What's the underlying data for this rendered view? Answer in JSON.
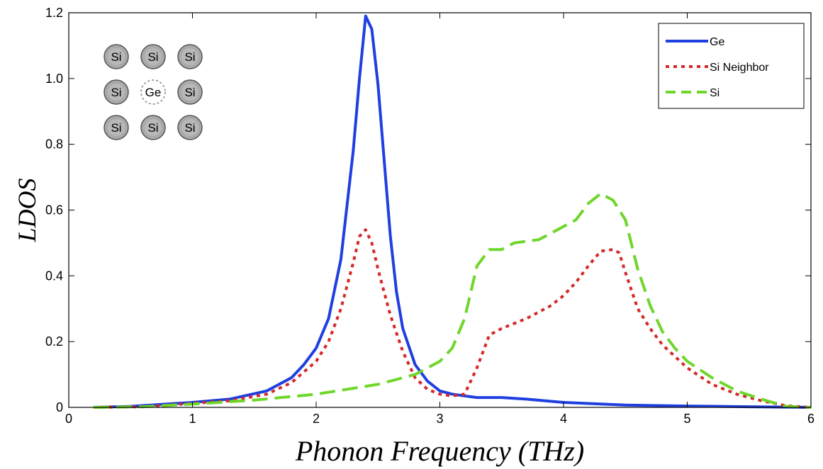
{
  "chart_data": {
    "type": "line",
    "title": "",
    "xlabel": "Phonon Frequency (THz)",
    "ylabel": "LDOS",
    "xlim": [
      0,
      6
    ],
    "ylim": [
      0,
      1.2
    ],
    "xticks": [
      "0",
      "1",
      "2",
      "3",
      "4",
      "5",
      "6"
    ],
    "yticks": [
      "0",
      "0.2",
      "0.4",
      "0.6",
      "0.8",
      "1.0",
      "1.2"
    ],
    "grid": false,
    "legend_position": "top-right",
    "series": [
      {
        "name": "Ge",
        "color": "#1f3fe0",
        "style": "solid",
        "points": [
          [
            0.2,
            0.0
          ],
          [
            0.5,
            0.003
          ],
          [
            1.0,
            0.015
          ],
          [
            1.3,
            0.025
          ],
          [
            1.6,
            0.05
          ],
          [
            1.8,
            0.09
          ],
          [
            1.9,
            0.13
          ],
          [
            2.0,
            0.18
          ],
          [
            2.1,
            0.27
          ],
          [
            2.2,
            0.45
          ],
          [
            2.3,
            0.78
          ],
          [
            2.35,
            1.0
          ],
          [
            2.4,
            1.19
          ],
          [
            2.45,
            1.15
          ],
          [
            2.5,
            0.98
          ],
          [
            2.55,
            0.75
          ],
          [
            2.6,
            0.52
          ],
          [
            2.65,
            0.35
          ],
          [
            2.7,
            0.24
          ],
          [
            2.8,
            0.13
          ],
          [
            2.9,
            0.08
          ],
          [
            3.0,
            0.05
          ],
          [
            3.1,
            0.04
          ],
          [
            3.2,
            0.035
          ],
          [
            3.3,
            0.03
          ],
          [
            3.5,
            0.03
          ],
          [
            3.7,
            0.025
          ],
          [
            4.0,
            0.015
          ],
          [
            4.5,
            0.007
          ],
          [
            5.0,
            0.004
          ],
          [
            5.5,
            0.002
          ],
          [
            6.0,
            0.0
          ]
        ]
      },
      {
        "name": "Si Neighbor",
        "color": "#d42a2a",
        "style": "dotted",
        "points": [
          [
            0.2,
            0.0
          ],
          [
            0.6,
            0.002
          ],
          [
            1.0,
            0.012
          ],
          [
            1.3,
            0.02
          ],
          [
            1.6,
            0.04
          ],
          [
            1.8,
            0.075
          ],
          [
            2.0,
            0.14
          ],
          [
            2.1,
            0.2
          ],
          [
            2.2,
            0.3
          ],
          [
            2.3,
            0.44
          ],
          [
            2.35,
            0.52
          ],
          [
            2.4,
            0.54
          ],
          [
            2.45,
            0.5
          ],
          [
            2.5,
            0.42
          ],
          [
            2.6,
            0.28
          ],
          [
            2.7,
            0.17
          ],
          [
            2.8,
            0.09
          ],
          [
            2.9,
            0.055
          ],
          [
            3.0,
            0.04
          ],
          [
            3.1,
            0.035
          ],
          [
            3.2,
            0.04
          ],
          [
            3.3,
            0.12
          ],
          [
            3.4,
            0.22
          ],
          [
            3.5,
            0.24
          ],
          [
            3.6,
            0.255
          ],
          [
            3.7,
            0.27
          ],
          [
            3.8,
            0.29
          ],
          [
            3.9,
            0.31
          ],
          [
            4.0,
            0.34
          ],
          [
            4.1,
            0.38
          ],
          [
            4.2,
            0.43
          ],
          [
            4.3,
            0.475
          ],
          [
            4.4,
            0.48
          ],
          [
            4.45,
            0.47
          ],
          [
            4.5,
            0.41
          ],
          [
            4.6,
            0.3
          ],
          [
            4.7,
            0.24
          ],
          [
            4.8,
            0.19
          ],
          [
            5.0,
            0.12
          ],
          [
            5.2,
            0.07
          ],
          [
            5.4,
            0.04
          ],
          [
            5.6,
            0.02
          ],
          [
            5.8,
            0.005
          ],
          [
            6.0,
            0.0
          ]
        ]
      },
      {
        "name": "Si",
        "color": "#6fd62a",
        "style": "dashed",
        "points": [
          [
            0.2,
            0.0
          ],
          [
            0.6,
            0.002
          ],
          [
            1.0,
            0.01
          ],
          [
            1.5,
            0.022
          ],
          [
            2.0,
            0.04
          ],
          [
            2.5,
            0.07
          ],
          [
            2.8,
            0.1
          ],
          [
            3.0,
            0.14
          ],
          [
            3.1,
            0.18
          ],
          [
            3.2,
            0.27
          ],
          [
            3.3,
            0.43
          ],
          [
            3.4,
            0.48
          ],
          [
            3.5,
            0.48
          ],
          [
            3.6,
            0.5
          ],
          [
            3.7,
            0.505
          ],
          [
            3.8,
            0.51
          ],
          [
            3.9,
            0.53
          ],
          [
            4.0,
            0.55
          ],
          [
            4.1,
            0.57
          ],
          [
            4.2,
            0.62
          ],
          [
            4.3,
            0.65
          ],
          [
            4.4,
            0.63
          ],
          [
            4.5,
            0.57
          ],
          [
            4.6,
            0.42
          ],
          [
            4.7,
            0.31
          ],
          [
            4.8,
            0.23
          ],
          [
            4.9,
            0.18
          ],
          [
            5.0,
            0.14
          ],
          [
            5.2,
            0.09
          ],
          [
            5.4,
            0.05
          ],
          [
            5.6,
            0.025
          ],
          [
            5.8,
            0.003
          ],
          [
            6.0,
            0.0
          ]
        ]
      }
    ]
  },
  "inset": {
    "atoms": [
      [
        "Si",
        "Si",
        "Si"
      ],
      [
        "Si",
        "Ge",
        "Si"
      ],
      [
        "Si",
        "Si",
        "Si"
      ]
    ],
    "center_atom_color": "#ffffff",
    "atom_color": "#a9a9a9"
  }
}
